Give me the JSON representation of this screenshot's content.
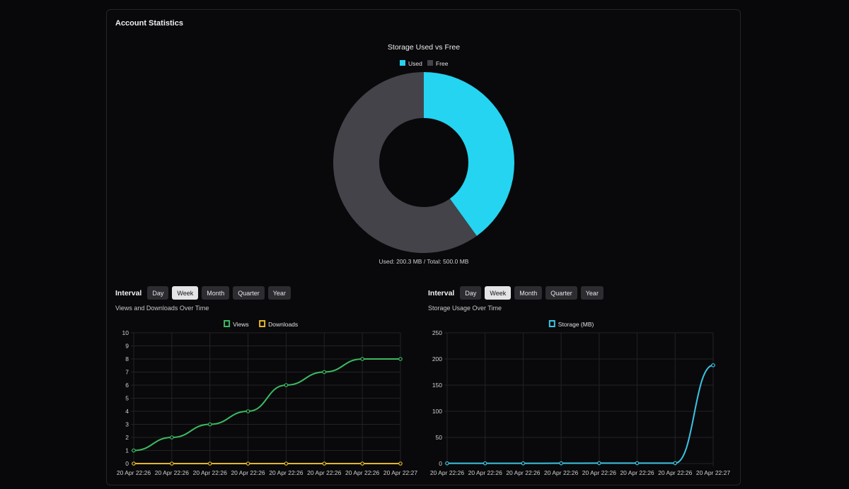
{
  "card": {
    "title": "Account Statistics"
  },
  "storage_donut": {
    "title": "Storage Used vs Free",
    "footer": "Used: 200.3 MB / Total: 500.0 MB"
  },
  "left_panel": {
    "interval_label": "Interval",
    "buttons": [
      "Day",
      "Week",
      "Month",
      "Quarter",
      "Year"
    ],
    "active": "Week",
    "subtitle": "Views and Downloads Over Time"
  },
  "right_panel": {
    "interval_label": "Interval",
    "buttons": [
      "Day",
      "Week",
      "Month",
      "Quarter",
      "Year"
    ],
    "active": "Week",
    "subtitle": "Storage Usage Over Time"
  },
  "colors": {
    "used": "#25d4f0",
    "free": "#434349",
    "views": "#3cb960",
    "downloads": "#e3b52a",
    "storage": "#3cc4e4",
    "grid": "#232327",
    "tick": "#d0d0d0"
  },
  "chart_data": [
    {
      "type": "pie",
      "title": "Storage Used vs Free",
      "categories": [
        "Used",
        "Free"
      ],
      "values": [
        200.3,
        299.7
      ],
      "legend": "top"
    },
    {
      "type": "line",
      "categories": [
        "20 Apr 22:26",
        "20 Apr 22:26",
        "20 Apr 22:26",
        "20 Apr 22:26",
        "20 Apr 22:26",
        "20 Apr 22:26",
        "20 Apr 22:26",
        "20 Apr 22:27"
      ],
      "series": [
        {
          "name": "Views",
          "values": [
            1,
            2,
            3,
            4,
            6,
            7,
            8,
            8
          ]
        },
        {
          "name": "Downloads",
          "values": [
            0,
            0,
            0,
            0,
            0,
            0,
            0,
            0
          ]
        }
      ],
      "yticks": [
        0,
        1,
        2,
        3,
        4,
        5,
        6,
        7,
        8,
        9,
        10
      ],
      "ylim": [
        0,
        10
      ],
      "grid": true,
      "legend": "top"
    },
    {
      "type": "line",
      "categories": [
        "20 Apr 22:26",
        "20 Apr 22:26",
        "20 Apr 22:26",
        "20 Apr 22:26",
        "20 Apr 22:26",
        "20 Apr 22:26",
        "20 Apr 22:26",
        "20 Apr 22:27"
      ],
      "series": [
        {
          "name": "Storage (MB)",
          "values": [
            0.5,
            0.5,
            0.5,
            0.6,
            0.8,
            0.8,
            0.8,
            188
          ]
        }
      ],
      "yticks": [
        0,
        50,
        100,
        150,
        200,
        250
      ],
      "ylim": [
        0,
        250
      ],
      "grid": true,
      "legend": "top"
    }
  ]
}
